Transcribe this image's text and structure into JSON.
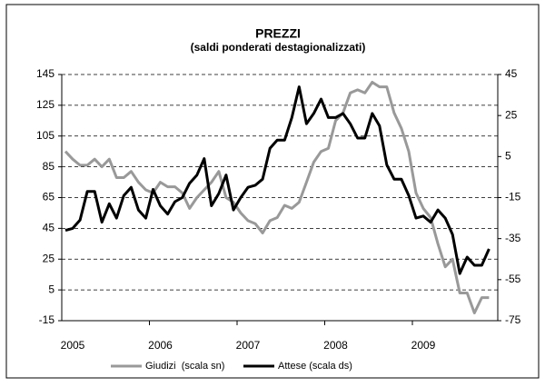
{
  "chart_data": {
    "type": "line",
    "title": "PREZZI",
    "subtitle": "(saldi ponderati destagionalizzati)",
    "categories": [
      "2005",
      null,
      null,
      null,
      null,
      null,
      null,
      null,
      null,
      null,
      null,
      null,
      "2006",
      null,
      null,
      null,
      null,
      null,
      null,
      null,
      null,
      null,
      null,
      null,
      "2007",
      null,
      null,
      null,
      null,
      null,
      null,
      null,
      null,
      null,
      null,
      null,
      "2008",
      null,
      null,
      null,
      null,
      null,
      null,
      null,
      null,
      null,
      null,
      null,
      "2009",
      null,
      null,
      null,
      null,
      null,
      null,
      null,
      null,
      null,
      null
    ],
    "series": [
      {
        "name": "Giudizi  (scala sn)",
        "color": "#999999",
        "values": [
          95,
          90,
          86,
          86,
          90,
          85,
          90,
          78,
          78,
          82,
          75,
          70,
          68,
          75,
          72,
          72,
          68,
          58,
          65,
          70,
          75,
          82,
          65,
          62,
          55,
          50,
          48,
          42,
          50,
          52,
          60,
          58,
          62,
          75,
          88,
          95,
          97,
          115,
          120,
          133,
          135,
          133,
          140,
          137,
          137,
          120,
          110,
          95,
          68,
          58,
          52,
          35,
          20,
          25,
          3,
          3,
          -10,
          0,
          0
        ]
      },
      {
        "name": "Attese (scala ds)",
        "color": "#000000",
        "axis": "y2",
        "values": [
          -31,
          -30,
          -26,
          -12,
          -12,
          -27,
          -18,
          -25,
          -14,
          -10,
          -21,
          -25,
          -11,
          -19,
          -23,
          -17,
          -15,
          -8,
          -4,
          4,
          -19,
          -13,
          -4,
          -21,
          -15,
          -10,
          -9,
          -6,
          9,
          13,
          13,
          24,
          39,
          21,
          26,
          33,
          24,
          24,
          26,
          21,
          14,
          14,
          26,
          20,
          1,
          -6,
          -6,
          -14,
          -25,
          -24,
          -27,
          -21,
          -25,
          -33,
          -52,
          -44,
          -48,
          -48,
          -40
        ]
      }
    ],
    "ylim": [
      -15,
      145
    ],
    "yticks": [
      -15,
      5,
      25,
      45,
      65,
      85,
      105,
      125,
      145
    ],
    "y2lim": [
      -75,
      45
    ],
    "y2ticks": [
      -75,
      -55,
      -35,
      -15,
      5,
      25,
      45
    ],
    "grid": true
  }
}
